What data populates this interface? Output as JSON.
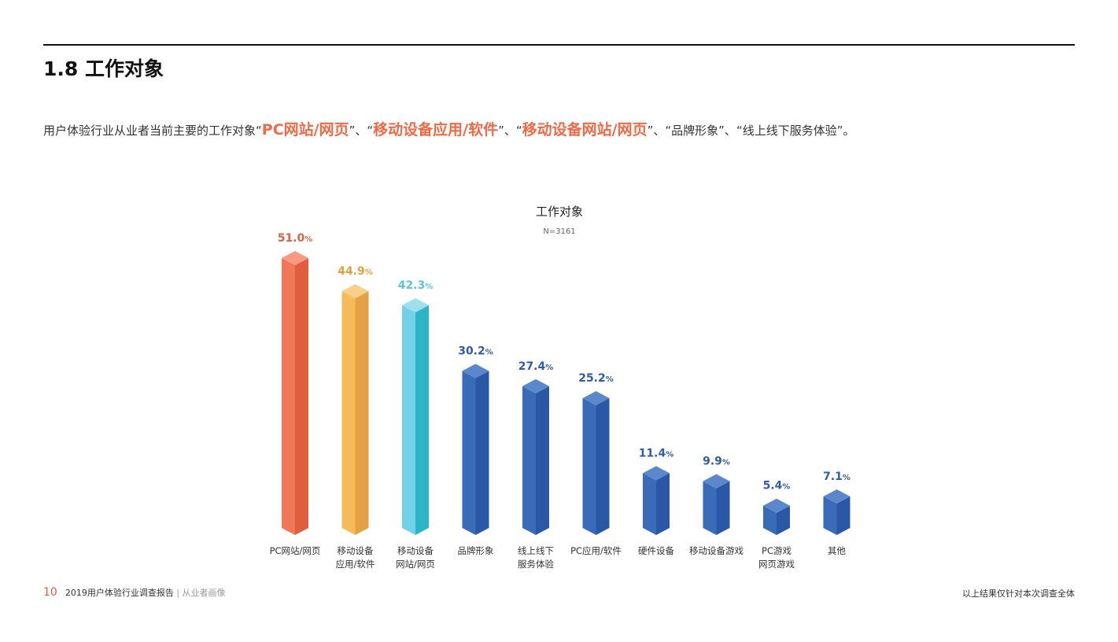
{
  "header": {
    "title": "1.8 工作对象"
  },
  "intro": {
    "prefix": "用户体验行业从业者当前主要的工作对象",
    "q1": "“",
    "h1": "PC网站/网页",
    "q1e": "”、“",
    "h2": "移动设备应用/软件",
    "q2e": "”、“",
    "h3": "移动设备网站/网页",
    "q3e": "”、“品牌形象”、“线上线下服务体验”。"
  },
  "chart_data": {
    "type": "bar",
    "title": "工作对象",
    "subtitle": "N=3161",
    "categories": [
      "PC网站/网页",
      "移动设备\n应用/软件",
      "移动设备\n网站/网页",
      "品牌形象",
      "线上线下\n服务体验",
      "PC应用/软件",
      "硬件设备",
      "移动设备游戏",
      "PC游戏\n网页游戏",
      "其他"
    ],
    "values": [
      51.0,
      44.9,
      42.3,
      30.2,
      27.4,
      25.2,
      11.4,
      9.9,
      5.4,
      7.1
    ],
    "unit": "%",
    "ylim": [
      0,
      51
    ],
    "colors": [
      {
        "label": "#e0603f",
        "front": "#f27658",
        "side": "#e05d40",
        "top": "#f79a82"
      },
      {
        "label": "#e5a03c",
        "front": "#f5bb58",
        "side": "#e3a045",
        "top": "#f9d08a"
      },
      {
        "label": "#5cc3dc",
        "front": "#72d1e8",
        "side": "#2cb5c8",
        "top": "#9fe0ef"
      },
      {
        "label": "#2f5ca8",
        "front": "#3a6bb9",
        "side": "#2b58a6",
        "top": "#5b88cc"
      }
    ]
  },
  "footer": {
    "page": "10",
    "report": "2019用户体验行业调查报告",
    "sep": " | ",
    "section": "从业者画像",
    "note": "以上结果仅针对本次调查全体"
  }
}
